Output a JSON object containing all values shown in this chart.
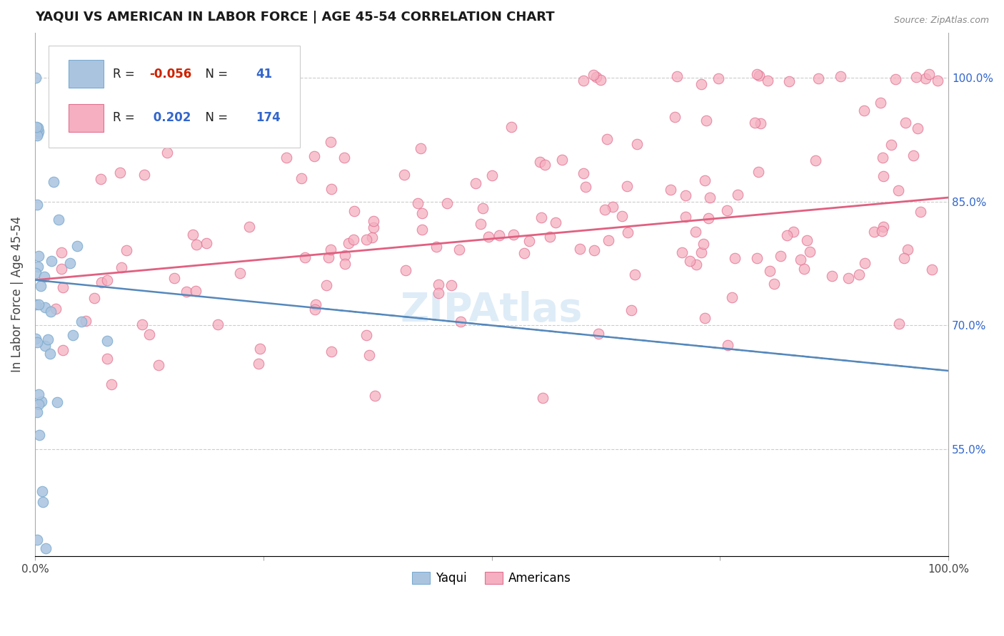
{
  "title": "YAQUI VS AMERICAN IN LABOR FORCE | AGE 45-54 CORRELATION CHART",
  "source_text": "Source: ZipAtlas.com",
  "ylabel": "In Labor Force | Age 45-54",
  "xlim": [
    0.0,
    1.0
  ],
  "ylim": [
    0.42,
    1.055
  ],
  "ytick_positions": [
    0.55,
    0.7,
    0.85,
    1.0
  ],
  "ytick_labels": [
    "55.0%",
    "70.0%",
    "85.0%",
    "100.0%"
  ],
  "yaqui_R": -0.056,
  "yaqui_N": 41,
  "american_R": 0.202,
  "american_N": 174,
  "yaqui_color": "#aac4e0",
  "american_color": "#f5afc0",
  "yaqui_edge_color": "#7aabcf",
  "american_edge_color": "#e07090",
  "yaqui_line_color": "#5588bb",
  "american_line_color": "#e06080",
  "background_color": "#ffffff",
  "grid_color": "#cccccc",
  "watermark_color": "#d0e4f5",
  "legend_edge_color": "#cccccc",
  "right_tick_color": "#3366cc",
  "title_color": "#1a1a1a",
  "source_color": "#888888",
  "ylabel_color": "#444444"
}
